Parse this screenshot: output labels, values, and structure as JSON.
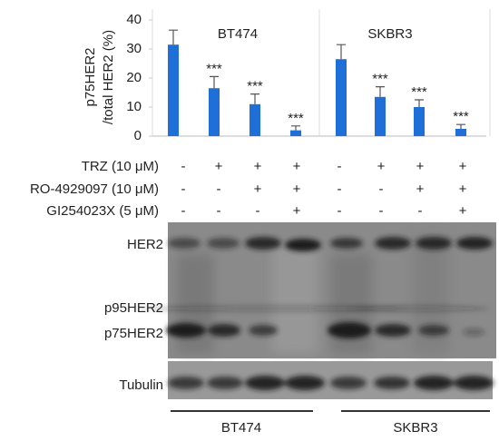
{
  "chart_data": [
    {
      "type": "bar",
      "title": "BT474",
      "ylabel": [
        "p75HER2",
        "/total HER2 (%)"
      ],
      "ylim": [
        0,
        40
      ],
      "yticks": [
        0,
        10,
        20,
        30,
        40
      ],
      "series": [
        {
          "color": "#1f6fd8",
          "values": [
            31.5,
            16.5,
            11,
            2
          ],
          "error": [
            5,
            4,
            3.5,
            1.5
          ],
          "annotations": [
            null,
            "***",
            "***",
            "***"
          ]
        }
      ]
    },
    {
      "type": "bar",
      "title": "SKBR3",
      "ylim": [
        0,
        40
      ],
      "series": [
        {
          "color": "#1f6fd8",
          "values": [
            26.5,
            13.5,
            10,
            2.5
          ],
          "error": [
            5,
            3.5,
            2.5,
            1.5
          ],
          "annotations": [
            null,
            "***",
            "***",
            "***"
          ]
        }
      ]
    }
  ],
  "treatments": {
    "rows": [
      {
        "label": "TRZ (10 μM)",
        "signs": [
          "-",
          "+",
          "+",
          "+",
          "-",
          "+",
          "+",
          "+"
        ]
      },
      {
        "label": "RO-4929097 (10 μM)",
        "signs": [
          "-",
          "-",
          "+",
          "+",
          "-",
          "-",
          "+",
          "+"
        ]
      },
      {
        "label": "GI254023X (5 μM)",
        "signs": [
          "-",
          "-",
          "-",
          "+",
          "-",
          "-",
          "-",
          "+"
        ]
      }
    ]
  },
  "blot": {
    "labels": [
      "HER2",
      "p95HER2",
      "p75HER2"
    ],
    "loading_control": "Tubulin",
    "groups": [
      "BT474",
      "SKBR3"
    ]
  }
}
